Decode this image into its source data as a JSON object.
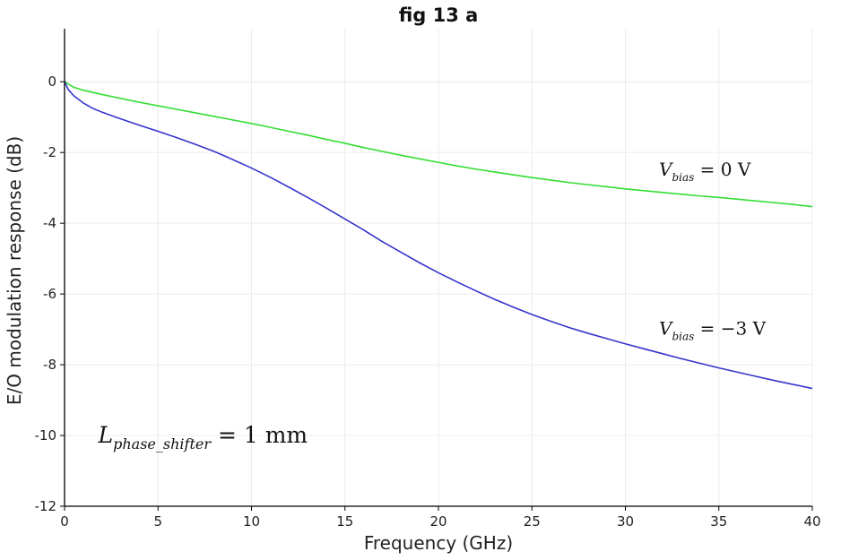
{
  "chart_data": {
    "type": "line",
    "title": "fig 13 a",
    "xlabel": "Frequency (GHz)",
    "ylabel": "E/O modulation response (dB)",
    "xlim": [
      0,
      40
    ],
    "ylim": [
      -12,
      1.5
    ],
    "xticks": [
      0,
      5,
      10,
      15,
      20,
      25,
      30,
      35,
      40
    ],
    "yticks": [
      0,
      -2,
      -4,
      -6,
      -8,
      -10,
      -12
    ],
    "grid": true,
    "series": [
      {
        "name": "V_bias = 0 V",
        "color": "#33dd33",
        "x": [
          0,
          0.5,
          1,
          2,
          3,
          4,
          5,
          6,
          7,
          8,
          9,
          10,
          11,
          12,
          13,
          14,
          15,
          16,
          17,
          18,
          19,
          20,
          21,
          22,
          23,
          24,
          25,
          26,
          27,
          28,
          29,
          30,
          31,
          32,
          33,
          34,
          35,
          36,
          37,
          38,
          39,
          40
        ],
        "values": [
          0,
          -0.16,
          -0.24,
          -0.36,
          -0.47,
          -0.58,
          -0.68,
          -0.78,
          -0.88,
          -0.98,
          -1.08,
          -1.18,
          -1.29,
          -1.4,
          -1.51,
          -1.63,
          -1.74,
          -1.86,
          -1.97,
          -2.08,
          -2.18,
          -2.28,
          -2.38,
          -2.47,
          -2.55,
          -2.63,
          -2.71,
          -2.78,
          -2.85,
          -2.91,
          -2.97,
          -3.03,
          -3.08,
          -3.13,
          -3.18,
          -3.23,
          -3.27,
          -3.32,
          -3.37,
          -3.42,
          -3.47,
          -3.53
        ]
      },
      {
        "name": "V_bias = −3 V",
        "color": "#3535cc",
        "x": [
          0,
          0.2,
          0.5,
          1,
          1.5,
          2,
          3,
          4,
          5,
          6,
          7,
          8,
          9,
          10,
          11,
          12,
          13,
          14,
          15,
          16,
          17,
          18,
          19,
          20,
          21,
          22,
          23,
          24,
          25,
          26,
          27,
          28,
          29,
          30,
          31,
          32,
          33,
          34,
          35,
          36,
          37,
          38,
          39,
          40
        ],
        "values": [
          0,
          -0.22,
          -0.4,
          -0.6,
          -0.75,
          -0.86,
          -1.05,
          -1.23,
          -1.4,
          -1.58,
          -1.77,
          -1.97,
          -2.2,
          -2.44,
          -2.7,
          -2.98,
          -3.27,
          -3.57,
          -3.88,
          -4.19,
          -4.52,
          -4.82,
          -5.12,
          -5.4,
          -5.66,
          -5.91,
          -6.15,
          -6.37,
          -6.58,
          -6.77,
          -6.95,
          -7.11,
          -7.26,
          -7.41,
          -7.55,
          -7.69,
          -7.83,
          -7.96,
          -8.09,
          -8.21,
          -8.33,
          -8.45,
          -8.56,
          -8.67
        ]
      }
    ],
    "annotations": [
      {
        "base": "V",
        "sub": "bias",
        "rest": " = 0 V",
        "x": 31.8,
        "y": -2.65
      },
      {
        "base": "V",
        "sub": "bias",
        "rest": " = −3 V",
        "x": 31.8,
        "y": -7.15
      },
      {
        "base": "L",
        "sub": "phase_shifter",
        "rest": " = 1 mm",
        "x": 1.8,
        "y": -10.2
      }
    ]
  }
}
